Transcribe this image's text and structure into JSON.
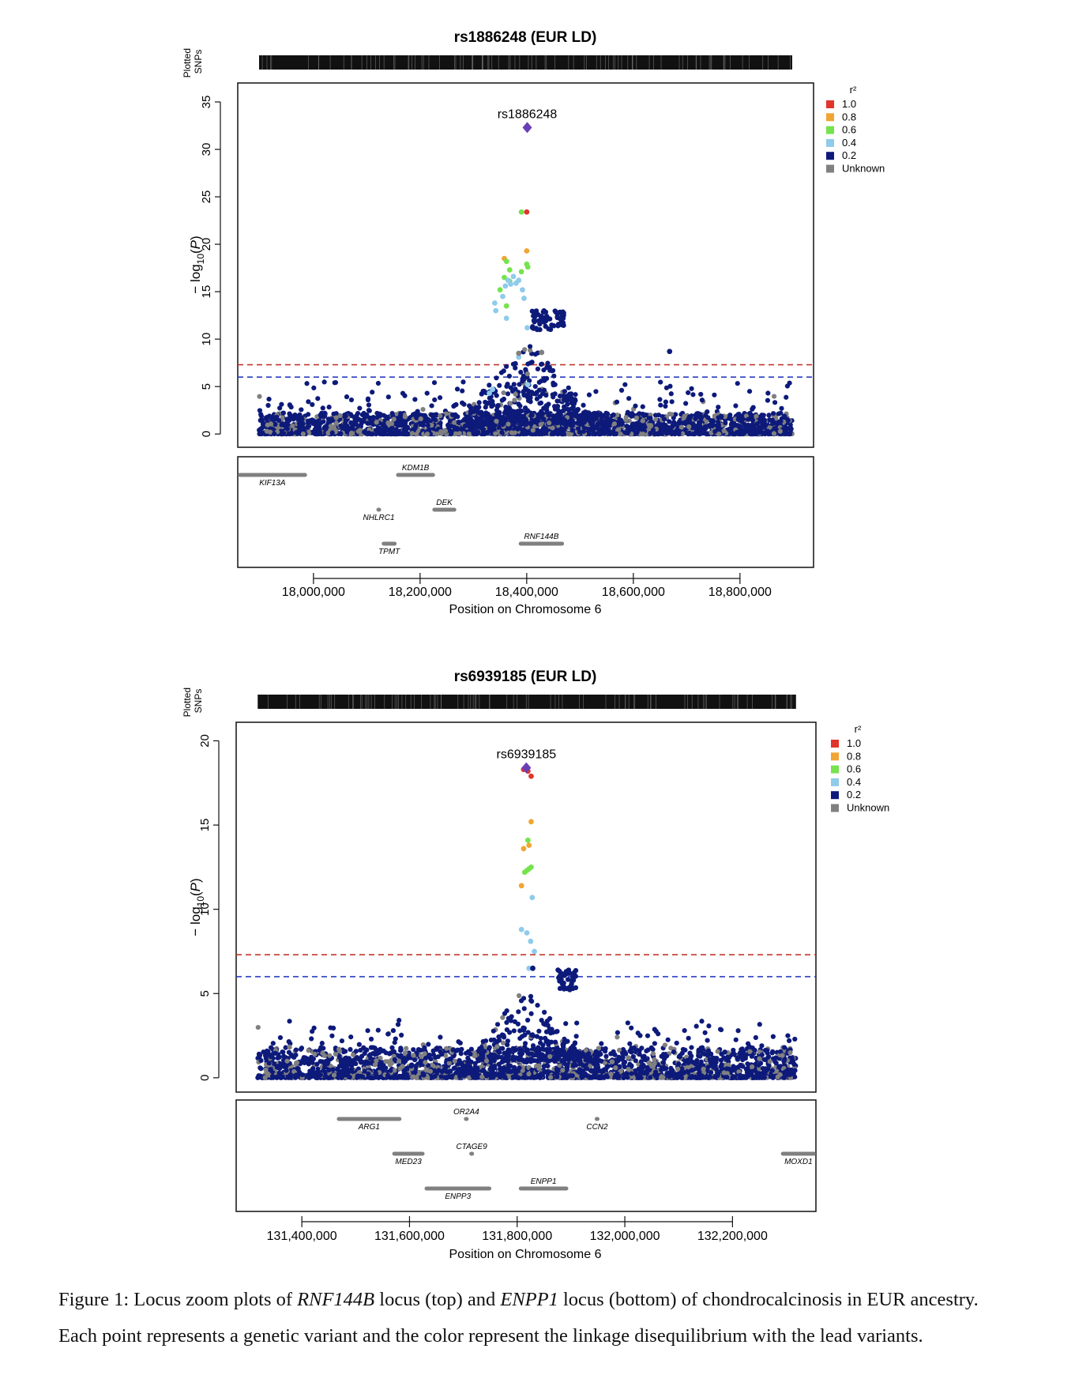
{
  "plots": [
    {
      "title": "rs1886248 (EUR LD)",
      "lead_snp": "rs1886248",
      "lead_position": 18401000,
      "lead_value": 32.3,
      "tracks_label": "Plotted SNPs",
      "ylabel": "−log₁₀(P)",
      "xlabel": "Position on Chromosome 6",
      "x_ticks": [
        "18,000,000",
        "18,200,000",
        "18,400,000",
        "18,600,000",
        "18,800,000"
      ],
      "x_tick_values": [
        18000000,
        18200000,
        18400000,
        18600000,
        18800000
      ],
      "xlim": [
        17858000,
        18938000
      ],
      "y_ticks": [
        "0",
        "5",
        "10",
        "15",
        "20",
        "25",
        "30",
        "35"
      ],
      "y_tick_values": [
        0,
        5,
        10,
        15,
        20,
        25,
        30,
        35
      ],
      "ylim": [
        -1.4,
        37
      ],
      "snp_range": [
        17898000,
        18898000
      ],
      "thresholds": [
        {
          "value": 7.3,
          "color": "#c0392b"
        },
        {
          "value": 6.0,
          "color": "#2a3fbf"
        }
      ],
      "genes": [
        {
          "name": "KIF13A",
          "start": 17858000,
          "end": 17988000,
          "row": 0,
          "label_pos": "below"
        },
        {
          "name": "KDM1B",
          "start": 18155000,
          "end": 18228000,
          "row": 0,
          "label_pos": "above"
        },
        {
          "name": "NHLRC1",
          "start": 18120000,
          "end": 18125000,
          "row": 1,
          "label_pos": "below"
        },
        {
          "name": "DEK",
          "start": 18223000,
          "end": 18268000,
          "row": 1,
          "label_pos": "above"
        },
        {
          "name": "TPMT",
          "start": 18128000,
          "end": 18156000,
          "row": 2,
          "label_pos": "below"
        },
        {
          "name": "RNF144B",
          "start": 18385000,
          "end": 18470000,
          "row": 2,
          "label_pos": "above"
        }
      ]
    },
    {
      "title": "rs6939185 (EUR LD)",
      "lead_snp": "rs6939185",
      "lead_position": 131817000,
      "lead_value": 18.4,
      "tracks_label": "Plotted SNPs",
      "ylabel": "−log₁₀(P)",
      "xlabel": "Position on Chromosome 6",
      "x_ticks": [
        "131,400,000",
        "131,600,000",
        "131,800,000",
        "132,000,000",
        "132,200,000"
      ],
      "x_tick_values": [
        131400000,
        131600000,
        131800000,
        132000000,
        132200000
      ],
      "xlim": [
        131278000,
        132355000
      ],
      "y_ticks": [
        "0",
        "5",
        "10",
        "15",
        "20"
      ],
      "y_tick_values": [
        0,
        5,
        10,
        15,
        20
      ],
      "ylim": [
        -0.85,
        21.1
      ],
      "snp_range": [
        131318000,
        132318000
      ],
      "thresholds": [
        {
          "value": 7.3,
          "color": "#c0392b"
        },
        {
          "value": 6.0,
          "color": "#2a3fbf"
        }
      ],
      "genes": [
        {
          "name": "ARG1",
          "start": 131465000,
          "end": 131585000,
          "row": 0,
          "label_pos": "below"
        },
        {
          "name": "OR2A4",
          "start": 131703000,
          "end": 131708000,
          "row": 0,
          "label_pos": "above"
        },
        {
          "name": "CCN2",
          "start": 131945000,
          "end": 131952000,
          "row": 0,
          "label_pos": "below"
        },
        {
          "name": "MED23",
          "start": 131568000,
          "end": 131628000,
          "row": 1,
          "label_pos": "below"
        },
        {
          "name": "CTAGE9",
          "start": 131713000,
          "end": 131718000,
          "row": 1,
          "label_pos": "above"
        },
        {
          "name": "MOXD1",
          "start": 132290000,
          "end": 132355000,
          "row": 1,
          "label_pos": "below"
        },
        {
          "name": "ENPP3",
          "start": 131628000,
          "end": 131752000,
          "row": 2,
          "label_pos": "below"
        },
        {
          "name": "ENPP1",
          "start": 131803000,
          "end": 131895000,
          "row": 2,
          "label_pos": "above"
        }
      ]
    }
  ],
  "legend": {
    "title": "r²",
    "items": [
      {
        "label": "1.0",
        "color": "#e1342b"
      },
      {
        "label": "0.8",
        "color": "#f0a534"
      },
      {
        "label": "0.6",
        "color": "#76e34e"
      },
      {
        "label": "0.4",
        "color": "#8fcbeb"
      },
      {
        "label": "0.2",
        "color": "#0d1a7a"
      },
      {
        "label": "Unknown",
        "color": "#808080"
      }
    ]
  },
  "caption": {
    "line1_parts": [
      "Figure 1: Locus zoom plots of ",
      "RNF144B",
      " locus (top) and ",
      "ENPP1",
      " locus (bottom) of chondrocalcinosis in EUR ancestry."
    ],
    "line2": "Each point represents a genetic variant and the color represent the linkage disequilibrium with the lead variants."
  },
  "chart_data": [
    {
      "type": "scatter",
      "title": "rs1886248 (EUR LD)",
      "xlabel": "Position on Chromosome 6",
      "ylabel": "−log₁₀(P)",
      "xlim": [
        17858000,
        18938000
      ],
      "ylim": [
        0,
        35
      ],
      "lead": {
        "name": "rs1886248",
        "x": 18401000,
        "y": 32.3,
        "color": "#6a3fb5",
        "marker": "diamond"
      },
      "highlight_points": [
        {
          "x": 18400000,
          "y": 23.4,
          "r2": "1.0"
        },
        {
          "x": 18390000,
          "y": 23.4,
          "r2": "0.6"
        },
        {
          "x": 18400000,
          "y": 19.3,
          "r2": "0.8"
        },
        {
          "x": 18358000,
          "y": 18.5,
          "r2": "0.8"
        },
        {
          "x": 18362000,
          "y": 18.2,
          "r2": "0.6"
        },
        {
          "x": 18400000,
          "y": 17.9,
          "r2": "0.6"
        },
        {
          "x": 18402000,
          "y": 17.6,
          "r2": "0.6"
        },
        {
          "x": 18368000,
          "y": 17.3,
          "r2": "0.6"
        },
        {
          "x": 18390000,
          "y": 17.1,
          "r2": "0.6"
        },
        {
          "x": 18358000,
          "y": 16.5,
          "r2": "0.6"
        },
        {
          "x": 18368000,
          "y": 16.1,
          "r2": "0.6"
        },
        {
          "x": 18350000,
          "y": 15.2,
          "r2": "0.6"
        },
        {
          "x": 18362000,
          "y": 13.5,
          "r2": "0.6"
        },
        {
          "x": 18340000,
          "y": 13.8,
          "r2": "0.4"
        },
        {
          "x": 18342000,
          "y": 13.0,
          "r2": "0.4"
        },
        {
          "x": 18355000,
          "y": 14.5,
          "r2": "0.4"
        },
        {
          "x": 18360000,
          "y": 15.6,
          "r2": "0.4"
        },
        {
          "x": 18365000,
          "y": 16.2,
          "r2": "0.4"
        },
        {
          "x": 18370000,
          "y": 15.8,
          "r2": "0.4"
        },
        {
          "x": 18375000,
          "y": 16.6,
          "r2": "0.4"
        },
        {
          "x": 18380000,
          "y": 15.9,
          "r2": "0.4"
        },
        {
          "x": 18385000,
          "y": 16.2,
          "r2": "0.4"
        },
        {
          "x": 18392000,
          "y": 15.2,
          "r2": "0.4"
        },
        {
          "x": 18395000,
          "y": 14.3,
          "r2": "0.4"
        },
        {
          "x": 18362000,
          "y": 12.2,
          "r2": "0.4"
        },
        {
          "x": 18401000,
          "y": 11.2,
          "r2": "0.4"
        },
        {
          "x": 18385000,
          "y": 8.1,
          "r2": "0.4"
        },
        {
          "x": 18402000,
          "y": 5.2,
          "r2": "0.4"
        },
        {
          "x": 18330000,
          "y": 4.3,
          "r2": "0.4"
        },
        {
          "x": 18336000,
          "y": 4.7,
          "r2": "0.4"
        },
        {
          "x": 18385000,
          "y": 8.5,
          "r2": "unknown"
        },
        {
          "x": 18428000,
          "y": 8.6,
          "r2": "unknown"
        },
        {
          "x": 18668000,
          "y": 8.7,
          "r2": "0.2"
        },
        {
          "x": 18468000,
          "y": 12.2,
          "r2": "0.2"
        }
      ],
      "background_snps": "dense 0.2 / unknown points between 0 and ~4 across 17,898,000-18,898,000; cluster up to ~13 near 18,400,000-18,470,000"
    },
    {
      "type": "scatter",
      "title": "rs6939185 (EUR LD)",
      "xlabel": "Position on Chromosome 6",
      "ylabel": "−log₁₀(P)",
      "xlim": [
        131278000,
        132355000
      ],
      "ylim": [
        0,
        20
      ],
      "lead": {
        "name": "rs6939185",
        "x": 131817000,
        "y": 18.4,
        "color": "#6a3fb5",
        "marker": "diamond"
      },
      "highlight_points": [
        {
          "x": 131812000,
          "y": 18.3,
          "r2": "1.0"
        },
        {
          "x": 131820000,
          "y": 18.2,
          "r2": "1.0"
        },
        {
          "x": 131826000,
          "y": 17.9,
          "r2": "1.0"
        },
        {
          "x": 131826000,
          "y": 15.2,
          "r2": "0.8"
        },
        {
          "x": 131812000,
          "y": 13.6,
          "r2": "0.8"
        },
        {
          "x": 131822000,
          "y": 13.8,
          "r2": "0.8"
        },
        {
          "x": 131808000,
          "y": 11.4,
          "r2": "0.8"
        },
        {
          "x": 131820000,
          "y": 14.1,
          "r2": "0.6"
        },
        {
          "x": 131814000,
          "y": 12.2,
          "r2": "0.6"
        },
        {
          "x": 131818000,
          "y": 12.3,
          "r2": "0.6"
        },
        {
          "x": 131822000,
          "y": 12.4,
          "r2": "0.6"
        },
        {
          "x": 131826000,
          "y": 12.5,
          "r2": "0.6"
        },
        {
          "x": 131828000,
          "y": 10.7,
          "r2": "0.4"
        },
        {
          "x": 131808000,
          "y": 8.8,
          "r2": "0.4"
        },
        {
          "x": 131818000,
          "y": 8.6,
          "r2": "0.4"
        },
        {
          "x": 131825000,
          "y": 8.1,
          "r2": "0.4"
        },
        {
          "x": 131832000,
          "y": 7.5,
          "r2": "0.4"
        },
        {
          "x": 131822000,
          "y": 6.5,
          "r2": "0.4"
        },
        {
          "x": 131829000,
          "y": 6.5,
          "r2": "0.2"
        }
      ],
      "background_snps": "dense 0.2 / unknown points between 0 and ~3 across 131,318,000-132,318,000; cluster up to ~6.5 near 131,880,000-131,920,000"
    }
  ]
}
